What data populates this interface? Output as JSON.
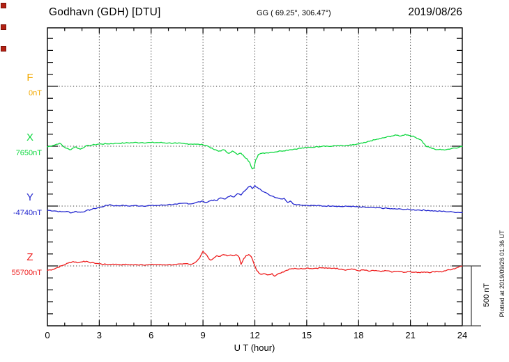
{
  "header": {
    "station": "Godhavn (GDH)  [DTU]",
    "coordinates": "GG ( 69.25°, 306.47°)",
    "date": "2019/08/26"
  },
  "axes": {
    "x_label": "U T (hour)",
    "x_range": [
      0,
      24
    ],
    "x_tick_labels": [
      "0",
      "3",
      "6",
      "9",
      "12",
      "15",
      "18",
      "21",
      "24"
    ],
    "x_minor_tick_hours": 1,
    "x_major_tick_hours": 3,
    "y_minor_tick_nT": 100,
    "y_major_tick_nT": 500,
    "grid": "dotted lines at 3-hour intervals and at each channel baseline"
  },
  "channels": [
    {
      "id": "F",
      "label": "F",
      "baseline_label": "0nT",
      "baseline_nT": 0,
      "color": "#f2a900",
      "has_trace": false
    },
    {
      "id": "X",
      "label": "X",
      "baseline_label": "7650nT",
      "baseline_nT": 7650,
      "color": "#0fd840",
      "has_trace": true
    },
    {
      "id": "Y",
      "label": "Y",
      "baseline_label": "-4740nT",
      "baseline_nT": -4740,
      "color": "#2428cf",
      "has_trace": true
    },
    {
      "id": "Z",
      "label": "Z",
      "baseline_label": "55700nT",
      "baseline_nT": 55700,
      "color": "#ee1c1c",
      "has_trace": true
    }
  ],
  "scale_bar": {
    "label": "500 nT",
    "span_nT": 500
  },
  "footer": {
    "plotted_at": "Plotted at 2019/09/26 01:36 UT"
  },
  "left_markers": {
    "count": 3,
    "color": "#b22113"
  },
  "chart_data": {
    "type": "line",
    "title": "Godhavn (GDH) [DTU] magnetogram, 2019/08/26",
    "xlabel": "U T (hour)",
    "x_range": [
      0,
      24
    ],
    "note": "points = [UT hour, offset in nT from channel baseline]; channel baselines are spaced 500 nT apart; F has no plotted trace",
    "series": [
      {
        "id": "F",
        "name": "F",
        "color": "#f2a900",
        "baseline_nT": 0,
        "points": []
      },
      {
        "id": "X",
        "name": "X",
        "color": "#0fd840",
        "baseline_nT": 7650,
        "points": [
          [
            0,
            -5
          ],
          [
            0.3,
            5
          ],
          [
            0.7,
            25
          ],
          [
            1.0,
            -10
          ],
          [
            1.3,
            -30
          ],
          [
            1.6,
            -5
          ],
          [
            1.9,
            -25
          ],
          [
            2.2,
            0
          ],
          [
            2.6,
            10
          ],
          [
            3,
            18
          ],
          [
            3.5,
            20
          ],
          [
            4,
            24
          ],
          [
            4.5,
            27
          ],
          [
            5,
            30
          ],
          [
            5.5,
            30
          ],
          [
            6,
            30
          ],
          [
            6.5,
            30
          ],
          [
            7,
            27
          ],
          [
            7.5,
            24
          ],
          [
            8,
            20
          ],
          [
            8.5,
            18
          ],
          [
            9,
            12
          ],
          [
            9.3,
            0
          ],
          [
            9.6,
            -25
          ],
          [
            9.9,
            -42
          ],
          [
            10.2,
            -30
          ],
          [
            10.5,
            -60
          ],
          [
            10.7,
            -40
          ],
          [
            11,
            -70
          ],
          [
            11.2,
            -58
          ],
          [
            11.4,
            -90
          ],
          [
            11.55,
            -105
          ],
          [
            11.7,
            -135
          ],
          [
            11.85,
            -190
          ],
          [
            11.95,
            -180
          ],
          [
            12.05,
            -115
          ],
          [
            12.2,
            -70
          ],
          [
            12.4,
            -60
          ],
          [
            12.7,
            -55
          ],
          [
            13,
            -50
          ],
          [
            13.5,
            -40
          ],
          [
            14,
            -30
          ],
          [
            14.5,
            -20
          ],
          [
            15,
            -12
          ],
          [
            15.5,
            -6
          ],
          [
            16,
            3
          ],
          [
            16.4,
            -2
          ],
          [
            16.8,
            6
          ],
          [
            17.2,
            2
          ],
          [
            17.6,
            9
          ],
          [
            18,
            18
          ],
          [
            18.4,
            30
          ],
          [
            18.7,
            45
          ],
          [
            19,
            55
          ],
          [
            19.3,
            65
          ],
          [
            19.6,
            75
          ],
          [
            19.9,
            85
          ],
          [
            20.2,
            92
          ],
          [
            20.45,
            85
          ],
          [
            20.7,
            98
          ],
          [
            21,
            89
          ],
          [
            21.3,
            74
          ],
          [
            21.6,
            54
          ],
          [
            21.9,
            0
          ],
          [
            22.1,
            -10
          ],
          [
            22.4,
            -25
          ],
          [
            22.8,
            -30
          ],
          [
            23.2,
            -25
          ],
          [
            23.5,
            -15
          ],
          [
            23.8,
            -10
          ],
          [
            24,
            0
          ]
        ]
      },
      {
        "id": "Y",
        "name": "Y",
        "color": "#2428cf",
        "baseline_nT": -4740,
        "points": [
          [
            0,
            -35
          ],
          [
            0.4,
            -40
          ],
          [
            0.8,
            -48
          ],
          [
            1.1,
            -45
          ],
          [
            1.4,
            -56
          ],
          [
            1.6,
            -45
          ],
          [
            1.9,
            -52
          ],
          [
            2.2,
            -42
          ],
          [
            2.6,
            -25
          ],
          [
            3,
            -12
          ],
          [
            3.3,
            0
          ],
          [
            3.6,
            12
          ],
          [
            3.9,
            2
          ],
          [
            4.3,
            6
          ],
          [
            4.7,
            0
          ],
          [
            5,
            4
          ],
          [
            5.5,
            1
          ],
          [
            6,
            4
          ],
          [
            6.5,
            6
          ],
          [
            7,
            12
          ],
          [
            7.5,
            15
          ],
          [
            8,
            24
          ],
          [
            8.3,
            18
          ],
          [
            8.6,
            30
          ],
          [
            9,
            40
          ],
          [
            9.2,
            30
          ],
          [
            9.5,
            50
          ],
          [
            9.8,
            45
          ],
          [
            10,
            68
          ],
          [
            10.3,
            60
          ],
          [
            10.6,
            88
          ],
          [
            10.8,
            76
          ],
          [
            11,
            104
          ],
          [
            11.2,
            92
          ],
          [
            11.4,
            125
          ],
          [
            11.6,
            155
          ],
          [
            11.75,
            167
          ],
          [
            11.85,
            146
          ],
          [
            12,
            172
          ],
          [
            12.15,
            155
          ],
          [
            12.3,
            143
          ],
          [
            12.5,
            120
          ],
          [
            12.8,
            96
          ],
          [
            13,
            84
          ],
          [
            13.3,
            68
          ],
          [
            13.5,
            60
          ],
          [
            13.7,
            65
          ],
          [
            13.9,
            30
          ],
          [
            14.05,
            42
          ],
          [
            14.2,
            20
          ],
          [
            14.5,
            12
          ],
          [
            15,
            6
          ],
          [
            15.5,
            4
          ],
          [
            16,
            0
          ],
          [
            16.5,
            2
          ],
          [
            17,
            -4
          ],
          [
            17.5,
            -2
          ],
          [
            18,
            -8
          ],
          [
            18.5,
            -12
          ],
          [
            19,
            -15
          ],
          [
            19.5,
            -18
          ],
          [
            20,
            -24
          ],
          [
            20.5,
            -26
          ],
          [
            21,
            -30
          ],
          [
            21.5,
            -33
          ],
          [
            22,
            -36
          ],
          [
            22.5,
            -42
          ],
          [
            23,
            -45
          ],
          [
            23.5,
            -50
          ],
          [
            24,
            -54
          ]
        ]
      },
      {
        "id": "Z",
        "name": "Z",
        "color": "#ee1c1c",
        "baseline_nT": 55700,
        "points": [
          [
            0,
            -36
          ],
          [
            0.3,
            -30
          ],
          [
            0.6,
            -12
          ],
          [
            0.9,
            5
          ],
          [
            1.2,
            24
          ],
          [
            1.5,
            36
          ],
          [
            1.8,
            27
          ],
          [
            2.1,
            40
          ],
          [
            2.4,
            30
          ],
          [
            2.7,
            25
          ],
          [
            3,
            18
          ],
          [
            3.4,
            12
          ],
          [
            3.8,
            15
          ],
          [
            4.2,
            10
          ],
          [
            4.6,
            12
          ],
          [
            5,
            9
          ],
          [
            5.4,
            11
          ],
          [
            5.8,
            9
          ],
          [
            6.2,
            11
          ],
          [
            6.6,
            9
          ],
          [
            7,
            11
          ],
          [
            7.4,
            10
          ],
          [
            7.8,
            15
          ],
          [
            8.1,
            20
          ],
          [
            8.35,
            14
          ],
          [
            8.6,
            35
          ],
          [
            8.8,
            65
          ],
          [
            9,
            122
          ],
          [
            9.15,
            100
          ],
          [
            9.3,
            70
          ],
          [
            9.45,
            48
          ],
          [
            9.6,
            62
          ],
          [
            9.8,
            86
          ],
          [
            10,
            80
          ],
          [
            10.2,
            95
          ],
          [
            10.4,
            84
          ],
          [
            10.6,
            92
          ],
          [
            10.8,
            86
          ],
          [
            10.95,
            92
          ],
          [
            11.1,
            70
          ],
          [
            11.2,
            12
          ],
          [
            11.35,
            60
          ],
          [
            11.5,
            88
          ],
          [
            11.65,
            95
          ],
          [
            11.8,
            76
          ],
          [
            11.95,
            18
          ],
          [
            12.1,
            -36
          ],
          [
            12.25,
            -62
          ],
          [
            12.4,
            -70
          ],
          [
            12.6,
            -66
          ],
          [
            12.8,
            -73
          ],
          [
            13,
            -64
          ],
          [
            13.15,
            -86
          ],
          [
            13.3,
            -70
          ],
          [
            13.5,
            -60
          ],
          [
            13.75,
            -42
          ],
          [
            14,
            -25
          ],
          [
            14.3,
            -20
          ],
          [
            14.6,
            -24
          ],
          [
            15,
            -18
          ],
          [
            15.4,
            -21
          ],
          [
            15.8,
            -15
          ],
          [
            16.2,
            -20
          ],
          [
            16.6,
            -18
          ],
          [
            17,
            -26
          ],
          [
            17.3,
            -34
          ],
          [
            17.6,
            -25
          ],
          [
            18,
            -40
          ],
          [
            18.3,
            -33
          ],
          [
            18.6,
            -44
          ],
          [
            19,
            -38
          ],
          [
            19.3,
            -48
          ],
          [
            19.6,
            -40
          ],
          [
            20,
            -50
          ],
          [
            20.3,
            -44
          ],
          [
            20.6,
            -54
          ],
          [
            21,
            -48
          ],
          [
            21.4,
            -56
          ],
          [
            21.8,
            -50
          ],
          [
            22.2,
            -54
          ],
          [
            22.5,
            -44
          ],
          [
            22.8,
            -50
          ],
          [
            23.1,
            -36
          ],
          [
            23.4,
            -30
          ],
          [
            23.7,
            -14
          ],
          [
            24,
            0
          ]
        ]
      }
    ]
  }
}
